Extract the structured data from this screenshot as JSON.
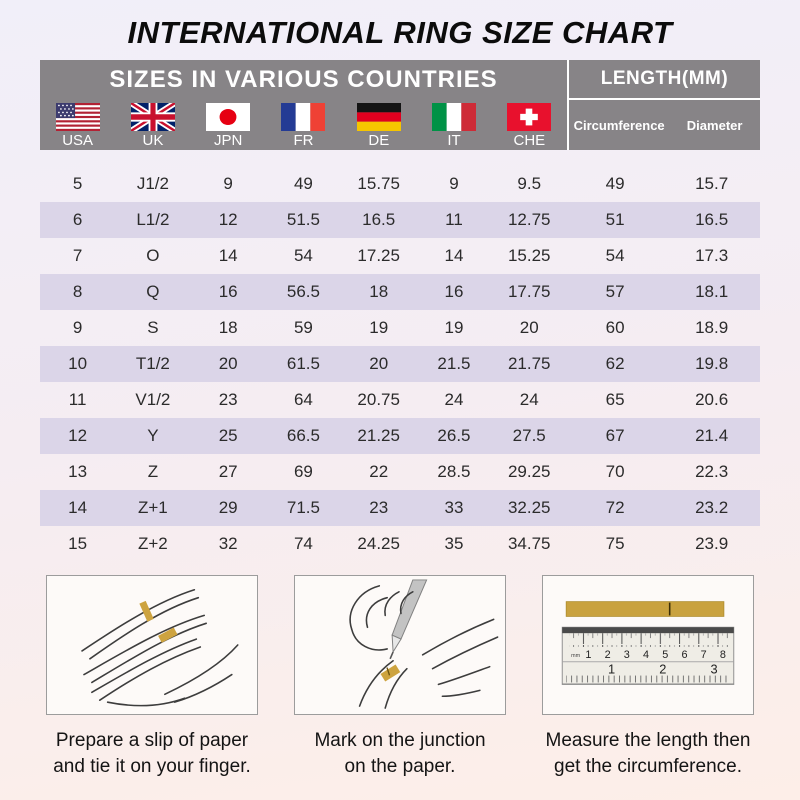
{
  "title": "INTERNATIONAL RING SIZE CHART",
  "table": {
    "header_left": "SIZES IN VARIOUS COUNTRIES",
    "header_right": "LENGTH(MM)",
    "countries": [
      {
        "code": "USA",
        "flag": "usa-flag"
      },
      {
        "code": "UK",
        "flag": "uk-flag"
      },
      {
        "code": "JPN",
        "flag": "japan-flag"
      },
      {
        "code": "FR",
        "flag": "france-flag"
      },
      {
        "code": "DE",
        "flag": "germany-flag"
      },
      {
        "code": "IT",
        "flag": "italy-flag"
      },
      {
        "code": "CHE",
        "flag": "switzerland-flag"
      }
    ],
    "length_columns": [
      "Circumference",
      "Diameter"
    ],
    "rows": [
      [
        "5",
        "J1/2",
        "9",
        "49",
        "15.75",
        "9",
        "9.5",
        "49",
        "15.7"
      ],
      [
        "6",
        "L1/2",
        "12",
        "51.5",
        "16.5",
        "11",
        "12.75",
        "51",
        "16.5"
      ],
      [
        "7",
        "O",
        "14",
        "54",
        "17.25",
        "14",
        "15.25",
        "54",
        "17.3"
      ],
      [
        "8",
        "Q",
        "16",
        "56.5",
        "18",
        "16",
        "17.75",
        "57",
        "18.1"
      ],
      [
        "9",
        "S",
        "18",
        "59",
        "19",
        "19",
        "20",
        "60",
        "18.9"
      ],
      [
        "10",
        "T1/2",
        "20",
        "61.5",
        "20",
        "21.5",
        "21.75",
        "62",
        "19.8"
      ],
      [
        "11",
        "V1/2",
        "23",
        "64",
        "20.75",
        "24",
        "24",
        "65",
        "20.6"
      ],
      [
        "12",
        "Y",
        "25",
        "66.5",
        "21.25",
        "26.5",
        "27.5",
        "67",
        "21.4"
      ],
      [
        "13",
        "Z",
        "27",
        "69",
        "22",
        "28.5",
        "29.25",
        "70",
        "22.3"
      ],
      [
        "14",
        "Z+1",
        "29",
        "71.5",
        "23",
        "33",
        "32.25",
        "72",
        "23.2"
      ],
      [
        "15",
        "Z+2",
        "32",
        "74",
        "24.25",
        "35",
        "34.75",
        "75",
        "23.9"
      ]
    ]
  },
  "steps": [
    {
      "illustration": "hand-with-paper-strip-sketch",
      "caption_line1": "Prepare a slip of paper",
      "caption_line2": "and tie it on your finger."
    },
    {
      "illustration": "pen-marking-junction-sketch",
      "caption_line1": "Mark on the junction",
      "caption_line2": "on the paper."
    },
    {
      "illustration": "ruler-measuring-strip-sketch",
      "caption_line1": "Measure the length then",
      "caption_line2": "get the circumference."
    }
  ],
  "colors": {
    "header_bg": "#878487",
    "row_alt_bg": "#dbd5e8",
    "paper_strip": "#cda33f",
    "bg_top": "#f1eff9",
    "bg_bottom": "#fdeee8"
  }
}
